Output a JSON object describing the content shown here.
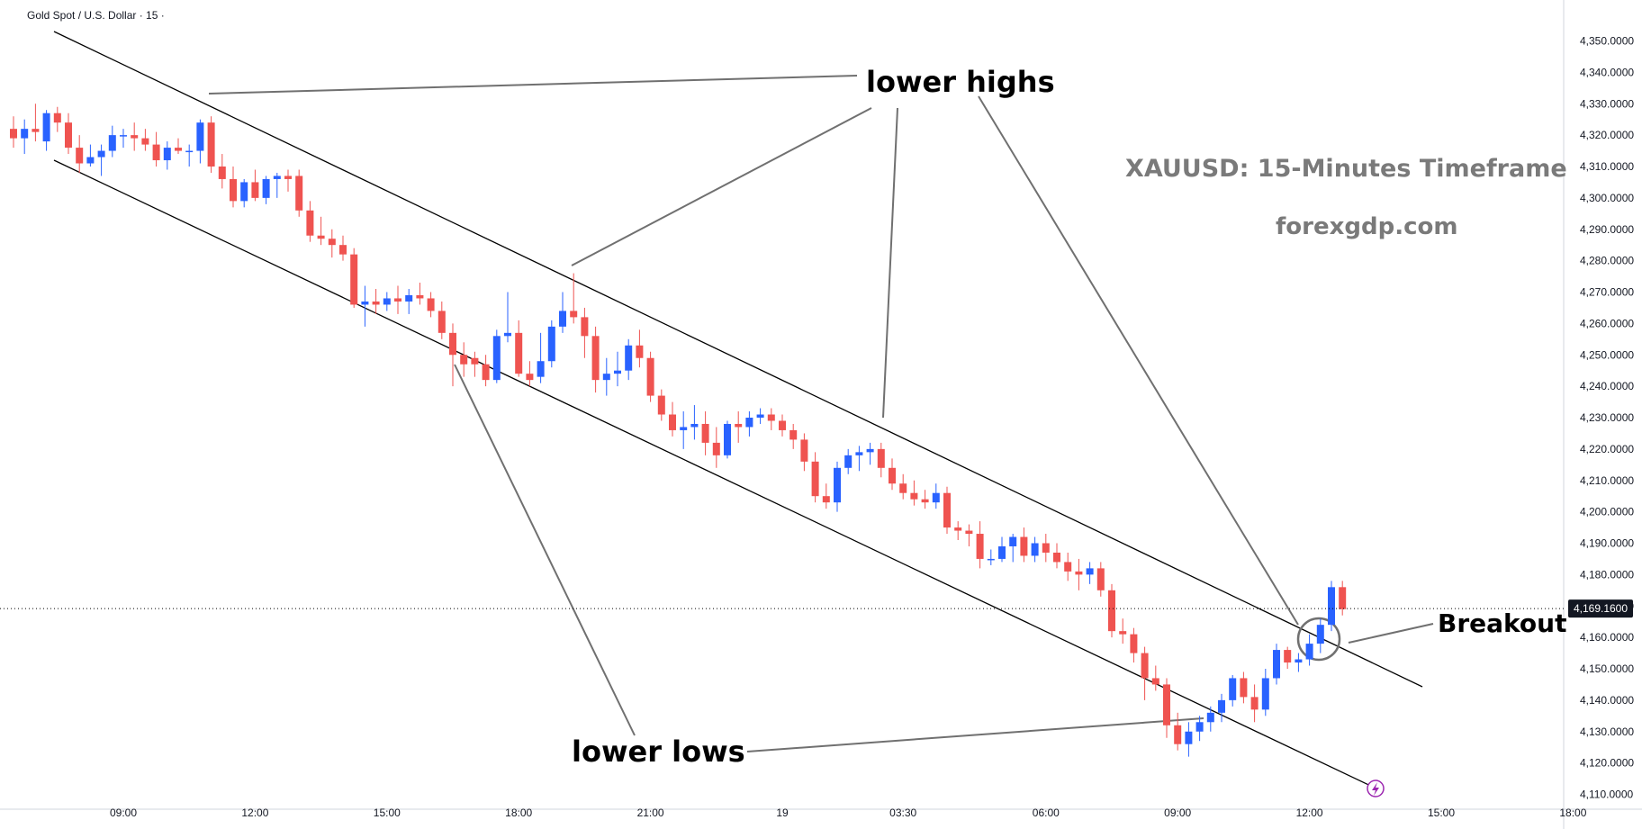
{
  "header": {
    "symbol_title": "Gold Spot / U.S. Dollar · 15 ·"
  },
  "colors": {
    "bull": "#2962ff",
    "bear": "#ef5350",
    "line": "#000000",
    "callout": "#707070",
    "axis_text": "#131722",
    "badge": "#131722"
  },
  "icons": {
    "alert": "lightning-bolt-icon"
  },
  "chart_data": {
    "type": "candlestick",
    "symbol": "XAUUSD",
    "interval": "15",
    "ylim": [
      4100,
      4355
    ],
    "y_ticks": [
      "4,110.0000",
      "4,120.0000",
      "4,130.0000",
      "4,140.0000",
      "4,150.0000",
      "4,160.0000",
      "4,170.0000",
      "4,180.0000",
      "4,190.0000",
      "4,200.0000",
      "4,210.0000",
      "4,220.0000",
      "4,230.0000",
      "4,240.0000",
      "4,250.0000",
      "4,260.0000",
      "4,270.0000",
      "4,280.0000",
      "4,290.0000",
      "4,300.0000",
      "4,310.0000",
      "4,320.0000",
      "4,330.0000",
      "4,340.0000",
      "4,350.0000"
    ],
    "x_ticks": [
      {
        "bar": 10,
        "label": "09:00"
      },
      {
        "bar": 22,
        "label": "12:00"
      },
      {
        "bar": 34,
        "label": "15:00"
      },
      {
        "bar": 46,
        "label": "18:00"
      },
      {
        "bar": 58,
        "label": "21:00"
      },
      {
        "bar": 70,
        "label": "19"
      },
      {
        "bar": 81,
        "label": "03:30"
      },
      {
        "bar": 94,
        "label": "06:00"
      },
      {
        "bar": 106,
        "label": "09:00"
      },
      {
        "bar": 118,
        "label": "12:00"
      },
      {
        "bar": 130,
        "label": "15:00"
      },
      {
        "bar": 142,
        "label": "18:00"
      }
    ],
    "last_price": 4169.16,
    "last_price_label": "4,169.1600",
    "candles": [
      [
        4322,
        4326,
        4316,
        4319
      ],
      [
        4319,
        4325,
        4314,
        4322
      ],
      [
        4322,
        4330,
        4318,
        4321
      ],
      [
        4318,
        4328,
        4315,
        4327
      ],
      [
        4327,
        4329,
        4321,
        4324
      ],
      [
        4324,
        4327,
        4314,
        4316
      ],
      [
        4316,
        4320,
        4308,
        4311
      ],
      [
        4311,
        4317,
        4310,
        4313
      ],
      [
        4313,
        4317,
        4307,
        4315
      ],
      [
        4315,
        4323,
        4313,
        4320
      ],
      [
        4320,
        4322,
        4316,
        4320
      ],
      [
        4320,
        4324,
        4315,
        4319
      ],
      [
        4319,
        4322,
        4315,
        4317
      ],
      [
        4317,
        4321,
        4310,
        4312
      ],
      [
        4312,
        4318,
        4309,
        4316
      ],
      [
        4316,
        4319,
        4314,
        4315
      ],
      [
        4315,
        4317,
        4310,
        4315
      ],
      [
        4315,
        4325,
        4311,
        4324
      ],
      [
        4324,
        4326,
        4308,
        4310
      ],
      [
        4310,
        4314,
        4303,
        4306
      ],
      [
        4306,
        4310,
        4297,
        4299
      ],
      [
        4299,
        4306,
        4297,
        4305
      ],
      [
        4305,
        4309,
        4299,
        4300
      ],
      [
        4300,
        4307,
        4298,
        4306
      ],
      [
        4306,
        4308,
        4300,
        4307
      ],
      [
        4307,
        4309,
        4302,
        4306
      ],
      [
        4307,
        4309,
        4294,
        4296
      ],
      [
        4296,
        4299,
        4286,
        4288
      ],
      [
        4288,
        4294,
        4285,
        4287
      ],
      [
        4287,
        4290,
        4281,
        4285
      ],
      [
        4285,
        4288,
        4280,
        4282
      ],
      [
        4282,
        4284,
        4265,
        4266
      ],
      [
        4266,
        4272,
        4259,
        4267
      ],
      [
        4267,
        4271,
        4263,
        4266
      ],
      [
        4266,
        4270,
        4264,
        4268
      ],
      [
        4268,
        4272,
        4263,
        4267
      ],
      [
        4267,
        4271,
        4263,
        4269
      ],
      [
        4269,
        4273,
        4266,
        4268
      ],
      [
        4268,
        4270,
        4262,
        4264
      ],
      [
        4264,
        4267,
        4255,
        4257
      ],
      [
        4257,
        4260,
        4240,
        4250
      ],
      [
        4250,
        4254,
        4243,
        4247
      ],
      [
        4249,
        4251,
        4243,
        4247
      ],
      [
        4247,
        4250,
        4240,
        4242
      ],
      [
        4242,
        4258,
        4241,
        4256
      ],
      [
        4256,
        4270,
        4254,
        4257
      ],
      [
        4257,
        4261,
        4243,
        4244
      ],
      [
        4244,
        4248,
        4240,
        4242
      ],
      [
        4243,
        4257,
        4241,
        4248
      ],
      [
        4248,
        4261,
        4246,
        4259
      ],
      [
        4259,
        4270,
        4257,
        4264
      ],
      [
        4264,
        4276,
        4260,
        4262
      ],
      [
        4262,
        4265,
        4249,
        4256
      ],
      [
        4256,
        4259,
        4238,
        4242
      ],
      [
        4242,
        4249,
        4237,
        4244
      ],
      [
        4244,
        4251,
        4240,
        4245
      ],
      [
        4245,
        4255,
        4242,
        4253
      ],
      [
        4253,
        4258,
        4246,
        4249
      ],
      [
        4249,
        4251,
        4235,
        4237
      ],
      [
        4237,
        4239,
        4229,
        4231
      ],
      [
        4231,
        4235,
        4224,
        4226
      ],
      [
        4226,
        4232,
        4220,
        4227
      ],
      [
        4227,
        4234,
        4223,
        4228
      ],
      [
        4228,
        4232,
        4218,
        4222
      ],
      [
        4222,
        4227,
        4214,
        4218
      ],
      [
        4218,
        4229,
        4217,
        4228
      ],
      [
        4228,
        4232,
        4222,
        4227
      ],
      [
        4227,
        4232,
        4224,
        4230
      ],
      [
        4230,
        4233,
        4228,
        4231
      ],
      [
        4231,
        4233,
        4226,
        4229
      ],
      [
        4229,
        4231,
        4224,
        4226
      ],
      [
        4226,
        4228,
        4220,
        4223
      ],
      [
        4223,
        4225,
        4213,
        4216
      ],
      [
        4216,
        4219,
        4203,
        4205
      ],
      [
        4205,
        4209,
        4201,
        4203
      ],
      [
        4203,
        4216,
        4200,
        4214
      ],
      [
        4214,
        4220,
        4212,
        4218
      ],
      [
        4218,
        4221,
        4213,
        4219
      ],
      [
        4219,
        4222,
        4215,
        4220
      ],
      [
        4220,
        4222,
        4211,
        4214
      ],
      [
        4214,
        4217,
        4207,
        4209
      ],
      [
        4209,
        4212,
        4204,
        4206
      ],
      [
        4206,
        4210,
        4202,
        4204
      ],
      [
        4204,
        4207,
        4201,
        4203
      ],
      [
        4203,
        4209,
        4201,
        4206
      ],
      [
        4206,
        4208,
        4193,
        4195
      ],
      [
        4195,
        4197,
        4191,
        4194
      ],
      [
        4194,
        4196,
        4189,
        4193
      ],
      [
        4193,
        4197,
        4182,
        4185
      ],
      [
        4185,
        4188,
        4183,
        4185
      ],
      [
        4185,
        4192,
        4184,
        4189
      ],
      [
        4189,
        4193,
        4184,
        4192
      ],
      [
        4192,
        4195,
        4184,
        4186
      ],
      [
        4186,
        4192,
        4184,
        4190
      ],
      [
        4190,
        4193,
        4184,
        4187
      ],
      [
        4187,
        4190,
        4182,
        4184
      ],
      [
        4184,
        4187,
        4178,
        4181
      ],
      [
        4181,
        4185,
        4175,
        4180
      ],
      [
        4180,
        4184,
        4177,
        4182
      ],
      [
        4182,
        4184,
        4173,
        4175
      ],
      [
        4175,
        4177,
        4160,
        4162
      ],
      [
        4162,
        4166,
        4158,
        4161
      ],
      [
        4161,
        4163,
        4152,
        4155
      ],
      [
        4155,
        4157,
        4140,
        4147
      ],
      [
        4147,
        4151,
        4143,
        4145
      ],
      [
        4145,
        4147,
        4128,
        4132
      ],
      [
        4132,
        4136,
        4124,
        4126
      ],
      [
        4126,
        4133,
        4122,
        4130
      ],
      [
        4130,
        4135,
        4127,
        4133
      ],
      [
        4133,
        4138,
        4130,
        4136
      ],
      [
        4136,
        4142,
        4133,
        4140
      ],
      [
        4140,
        4148,
        4138,
        4147
      ],
      [
        4147,
        4149,
        4139,
        4141
      ],
      [
        4141,
        4145,
        4133,
        4137
      ],
      [
        4137,
        4150,
        4135,
        4147
      ],
      [
        4147,
        4158,
        4145,
        4156
      ],
      [
        4156,
        4157,
        4150,
        4152
      ],
      [
        4152,
        4155,
        4149,
        4153
      ],
      [
        4153,
        4161,
        4151,
        4158
      ],
      [
        4158,
        4166,
        4155,
        4164
      ],
      [
        4164,
        4178,
        4162,
        4176
      ],
      [
        4176,
        4178,
        4167,
        4169
      ]
    ],
    "annotations": [
      {
        "text": "lower highs"
      },
      {
        "text": "lower lows"
      },
      {
        "text": "Breakout"
      },
      {
        "text": "XAUUSD: 15-Minutes Timeframe"
      },
      {
        "text": "forexgdp.com"
      }
    ]
  }
}
